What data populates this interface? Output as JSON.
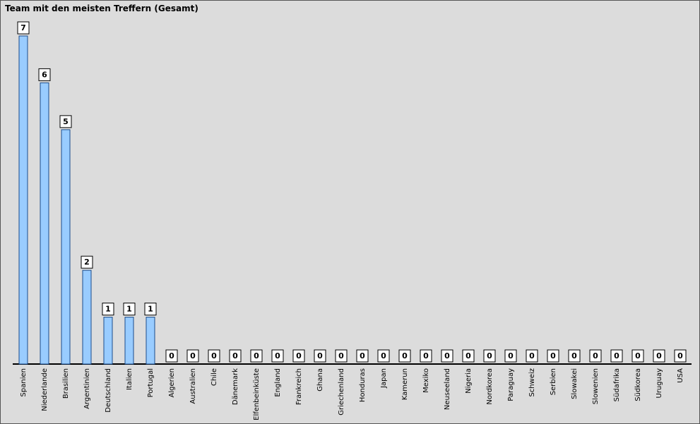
{
  "chart_data": {
    "type": "bar",
    "title": "Team mit den meisten Treffern (Gesamt)",
    "categories": [
      "Spanien",
      "Niederlande",
      "Brasilien",
      "Argentinien",
      "Deutschland",
      "Italien",
      "Portugal",
      "Algerien",
      "Australien",
      "Chile",
      "Dänemark",
      "Elfenbeinküste",
      "England",
      "Frankreich",
      "Ghana",
      "Griechenland",
      "Honduras",
      "Japan",
      "Kamerun",
      "Mexiko",
      "Neuseeland",
      "Nigeria",
      "Nordkorea",
      "Paraguay",
      "Schweiz",
      "Serbien",
      "Slowakei",
      "Slowenien",
      "Südafrika",
      "Südkorea",
      "Uruguay",
      "USA"
    ],
    "values": [
      7,
      6,
      5,
      2,
      1,
      1,
      1,
      0,
      0,
      0,
      0,
      0,
      0,
      0,
      0,
      0,
      0,
      0,
      0,
      0,
      0,
      0,
      0,
      0,
      0,
      0,
      0,
      0,
      0,
      0,
      0,
      0
    ],
    "color": "#99ccff",
    "ylim": [
      0,
      7
    ]
  }
}
